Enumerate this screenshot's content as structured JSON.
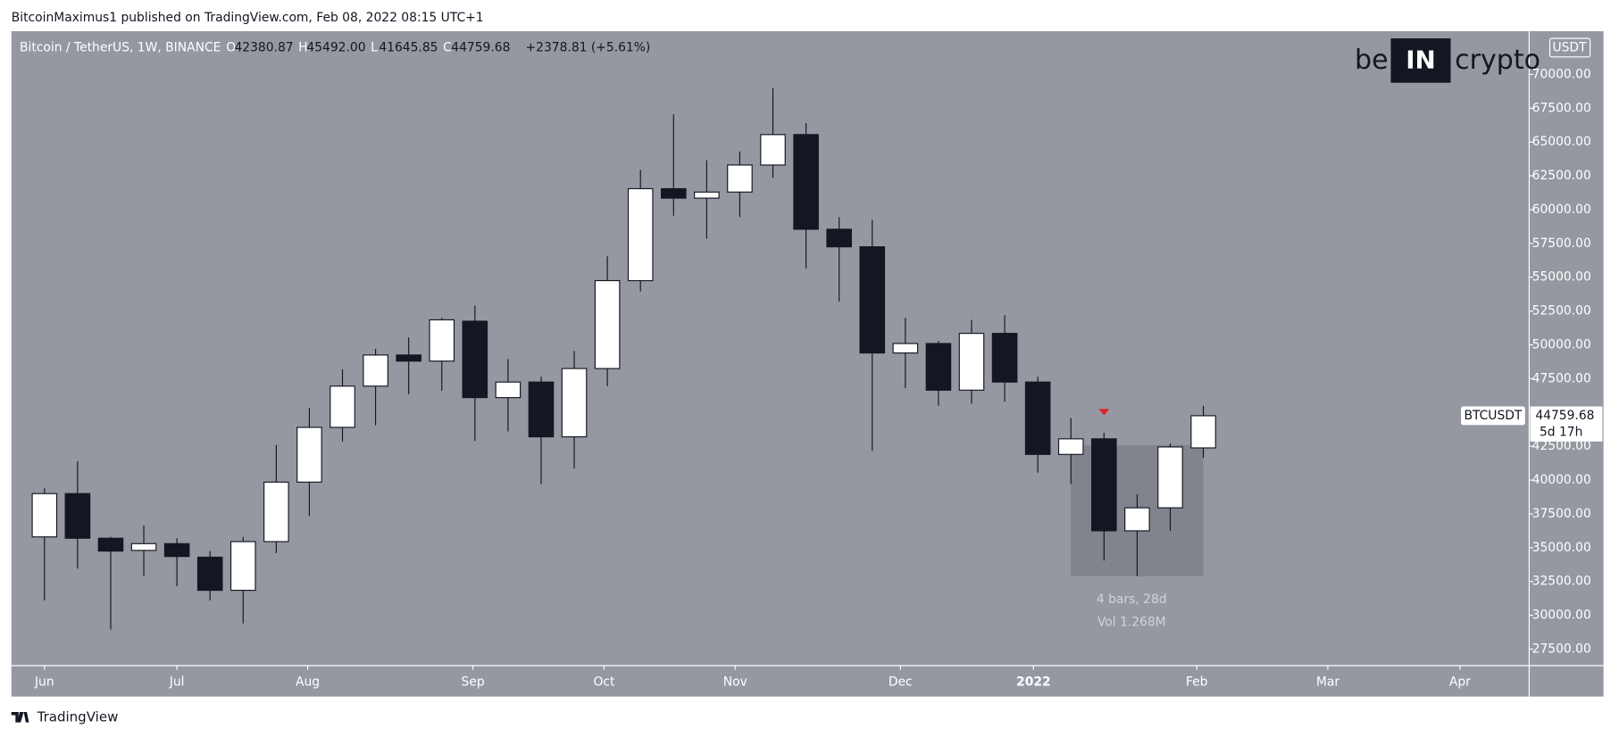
{
  "header": {
    "published": "BitcoinMaximus1 published on TradingView.com, Feb 08, 2022 08:15 UTC+1",
    "footer": "TradingView"
  },
  "logo": {
    "left": "be",
    "middle": "IN",
    "right": "crypto"
  },
  "chart_data": {
    "type": "candlestick",
    "symbol": "Bitcoin / TetherUS, 1W, BINANCE",
    "ohlc_legend": [
      [
        "O",
        "42380.87"
      ],
      [
        "H",
        "45492.00"
      ],
      [
        "L",
        "41645.85"
      ],
      [
        "C",
        "44759.68"
      ]
    ],
    "change": "+2378.81 (+5.61%)",
    "currency": "USDT",
    "last_price": {
      "value": 44759.68,
      "label": "44759.68",
      "countdown": "5d 17h",
      "ticker": "BTCUSDT"
    },
    "measure": {
      "bars": "4 bars, 28d",
      "volume": "Vol 1.268M"
    },
    "up_color": "#ffffff",
    "down_color": "#131722",
    "background": "#9598a1",
    "grid": false,
    "x": [
      0,
      1,
      2,
      3,
      4,
      5,
      6,
      7,
      8,
      9,
      10,
      11,
      12,
      13,
      14,
      15,
      16,
      17,
      18,
      19,
      20,
      21,
      22,
      23,
      24,
      25,
      26,
      27,
      28,
      29,
      30,
      31,
      32,
      33,
      34,
      35
    ],
    "open": [
      35800,
      39000,
      35700,
      34800,
      35300,
      34300,
      31850,
      35450,
      39850,
      43900,
      46950,
      49250,
      48800,
      51750,
      46100,
      47250,
      43200,
      48250,
      54750,
      61550,
      60850,
      61300,
      63300,
      65550,
      58550,
      57250,
      49400,
      50100,
      46650,
      50850,
      47250,
      41900,
      43050,
      36250,
      37950,
      42380.87
    ],
    "high": [
      39400,
      41400,
      35800,
      36650,
      35700,
      34750,
      35800,
      42600,
      45350,
      48200,
      49700,
      50550,
      52000,
      52900,
      48950,
      47650,
      49550,
      56550,
      62950,
      67050,
      63650,
      64300,
      69000,
      66400,
      59450,
      59250,
      52000,
      50300,
      51850,
      52200,
      47650,
      44600,
      43500,
      38950,
      42700,
      45492
    ],
    "low": [
      31100,
      33450,
      28950,
      32900,
      32150,
      31100,
      29400,
      34600,
      37350,
      42850,
      44050,
      46350,
      46600,
      42900,
      43600,
      39700,
      40850,
      46950,
      53950,
      59550,
      57850,
      59450,
      62350,
      55650,
      53200,
      42150,
      46800,
      45500,
      45650,
      45800,
      40550,
      39700,
      34050,
      32900,
      36250,
      41645.85
    ],
    "close": [
      39000,
      35700,
      34750,
      35300,
      34350,
      31850,
      35450,
      39850,
      43900,
      46950,
      49250,
      48800,
      51850,
      46100,
      47250,
      43200,
      48250,
      54750,
      61550,
      60850,
      61300,
      63300,
      65550,
      58550,
      57250,
      49400,
      50100,
      46650,
      50850,
      47250,
      41900,
      43050,
      36250,
      37950,
      42450,
      44759.68
    ],
    "xlim": [
      -1,
      44.84
    ],
    "xticks": [
      {
        "value": 0,
        "label": "Jun"
      },
      {
        "value": 4,
        "label": "Jul"
      },
      {
        "value": 7.95,
        "label": "Aug"
      },
      {
        "value": 12.94,
        "label": "Sep"
      },
      {
        "value": 16.9,
        "label": "Oct"
      },
      {
        "value": 20.86,
        "label": "Nov"
      },
      {
        "value": 25.85,
        "label": "Dec"
      },
      {
        "value": 29.87,
        "label": "2022"
      },
      {
        "value": 34.8,
        "label": "Feb"
      },
      {
        "value": 38.76,
        "label": "Mar"
      },
      {
        "value": 42.75,
        "label": "Apr"
      }
    ],
    "ylim": [
      26280,
      73200
    ],
    "yticks": [
      {
        "value": 27500,
        "label": "27500.00"
      },
      {
        "value": 30000,
        "label": "30000.00"
      },
      {
        "value": 32500,
        "label": "32500.00"
      },
      {
        "value": 35000,
        "label": "35000.00"
      },
      {
        "value": 37500,
        "label": "37500.00"
      },
      {
        "value": 40000,
        "label": "40000.00"
      },
      {
        "value": 42500,
        "label": "42500.00"
      },
      {
        "value": 45000,
        "label": "45000.00"
      },
      {
        "value": 47500,
        "label": "47500.00"
      },
      {
        "value": 50000,
        "label": "50000.00"
      },
      {
        "value": 52500,
        "label": "52500.00"
      },
      {
        "value": 55000,
        "label": "55000.00"
      },
      {
        "value": 57500,
        "label": "57500.00"
      },
      {
        "value": 60000,
        "label": "60000.00"
      },
      {
        "value": 62500,
        "label": "62500.00"
      },
      {
        "value": 65000,
        "label": "65000.00"
      },
      {
        "value": 67500,
        "label": "67500.00"
      },
      {
        "value": 70000,
        "label": "70000.00"
      }
    ]
  }
}
